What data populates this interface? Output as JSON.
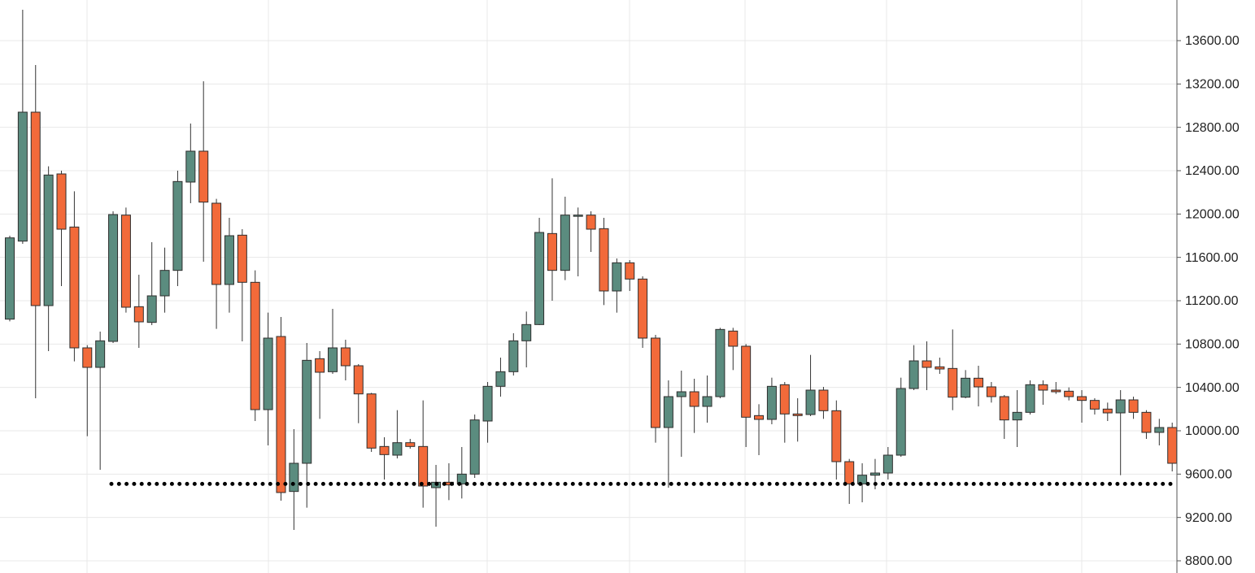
{
  "chart_data": {
    "type": "candlestick",
    "up_color": "#5b8c7f",
    "down_color": "#f26a3a",
    "grid": true,
    "ylim": [
      8687.5,
      13975
    ],
    "yticks": [
      {
        "value": 8800,
        "label": "8800.00"
      },
      {
        "value": 9200,
        "label": "9200.00"
      },
      {
        "value": 9600,
        "label": "9600.00"
      },
      {
        "value": 10000,
        "label": "10000.00"
      },
      {
        "value": 10400,
        "label": "10400.00"
      },
      {
        "value": 10800,
        "label": "10800.00"
      },
      {
        "value": 11200,
        "label": "11200.00"
      },
      {
        "value": 11600,
        "label": "11600.00"
      },
      {
        "value": 12000,
        "label": "12000.00"
      },
      {
        "value": 12400,
        "label": "12400.00"
      },
      {
        "value": 12800,
        "label": "12800.00"
      },
      {
        "value": 13200,
        "label": "13200.00"
      },
      {
        "value": 13600,
        "label": "13600.00"
      }
    ],
    "support_level": 9510,
    "open": [
      11030,
      11750,
      12940,
      11155,
      12370,
      11880,
      10765,
      10585,
      10825,
      11990,
      11145,
      11000,
      11245,
      11480,
      12295,
      12580,
      12100,
      11350,
      11805,
      11370,
      10195,
      10870,
      9440,
      9700,
      10665,
      10545,
      10765,
      10600,
      10340,
      9855,
      9775,
      9890,
      9855,
      9475,
      9525,
      9510,
      9600,
      10090,
      10410,
      10545,
      10830,
      10980,
      11820,
      11480,
      11980,
      11990,
      11865,
      11290,
      11550,
      11400,
      10855,
      10030,
      10315,
      10360,
      10225,
      10315,
      10920,
      10780,
      10140,
      10105,
      10425,
      10155,
      10150,
      10375,
      10185,
      9715,
      9510,
      9590,
      9610,
      9775,
      10390,
      10645,
      10590,
      10575,
      10310,
      10485,
      10405,
      10315,
      10100,
      10170,
      10425,
      10375,
      10365,
      10315,
      10280,
      10200,
      10165,
      10285,
      10170,
      9985,
      10030
    ],
    "high": [
      11800,
      13885,
      13375,
      12440,
      12400,
      12210,
      10790,
      10915,
      12025,
      12060,
      11440,
      11740,
      11690,
      12400,
      12835,
      13225,
      12140,
      11965,
      11860,
      11480,
      11090,
      11050,
      10015,
      10810,
      10735,
      11125,
      10840,
      10615,
      10350,
      9940,
      10190,
      9925,
      10280,
      9685,
      9700,
      9850,
      10150,
      10450,
      10675,
      10900,
      11100,
      11965,
      12330,
      12160,
      12060,
      12025,
      11965,
      11590,
      11575,
      11425,
      10885,
      10465,
      10555,
      10480,
      10510,
      10950,
      10950,
      10800,
      10245,
      10490,
      10450,
      10300,
      10700,
      10405,
      10280,
      9740,
      9700,
      9740,
      9850,
      10490,
      10790,
      10825,
      10675,
      10935,
      10560,
      10600,
      10450,
      10330,
      10375,
      10465,
      10465,
      10450,
      10400,
      10375,
      10300,
      10260,
      10375,
      10315,
      10190,
      10110,
      10075
    ],
    "low": [
      11010,
      11725,
      10300,
      10735,
      11335,
      10640,
      9950,
      9640,
      10810,
      11090,
      10765,
      10975,
      11090,
      11335,
      12100,
      11560,
      10940,
      11090,
      10825,
      10090,
      9865,
      9355,
      9085,
      9290,
      10110,
      10525,
      10465,
      10070,
      9805,
      9550,
      9745,
      9835,
      9290,
      9115,
      9360,
      9375,
      9565,
      9890,
      10315,
      10510,
      10585,
      10975,
      11200,
      11390,
      11425,
      11650,
      11160,
      11090,
      11290,
      10765,
      9890,
      9475,
      9760,
      9980,
      10075,
      10300,
      10560,
      9850,
      9775,
      10060,
      9890,
      9900,
      10135,
      10110,
      9550,
      9325,
      9340,
      9460,
      9550,
      9760,
      10375,
      10375,
      10525,
      10190,
      10300,
      10225,
      10260,
      9925,
      9850,
      10150,
      10240,
      10340,
      10280,
      10075,
      10150,
      10090,
      9590,
      10110,
      9925,
      9865,
      9625
    ],
    "close": [
      11780,
      12940,
      11155,
      12360,
      11860,
      10765,
      10585,
      10830,
      11995,
      11140,
      11005,
      11245,
      11480,
      12300,
      12580,
      12110,
      11350,
      11800,
      11370,
      10195,
      10855,
      9430,
      9700,
      10650,
      10540,
      10765,
      10600,
      10340,
      9840,
      9780,
      9890,
      9855,
      9490,
      9525,
      9500,
      9600,
      10100,
      10410,
      10545,
      10830,
      10980,
      11830,
      11480,
      11990,
      11990,
      11860,
      11290,
      11550,
      11400,
      10855,
      10030,
      10315,
      10360,
      10225,
      10315,
      10935,
      10780,
      10125,
      10105,
      10410,
      10155,
      10140,
      10375,
      10185,
      9715,
      9510,
      9590,
      9610,
      9775,
      10390,
      10645,
      10585,
      10570,
      10310,
      10485,
      10405,
      10315,
      10100,
      10170,
      10425,
      10375,
      10360,
      10315,
      10280,
      10200,
      10165,
      10285,
      10170,
      9985,
      10030,
      9700
    ]
  }
}
